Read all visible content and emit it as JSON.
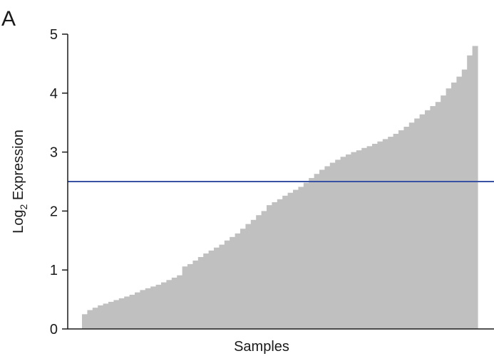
{
  "panel_label": "A",
  "chart_data": {
    "type": "bar",
    "title": "",
    "xlabel": "Samples",
    "ylabel_main": "Log",
    "ylabel_subscript": "2",
    "ylabel_rest": " Expression",
    "ylim": [
      0,
      5
    ],
    "yticks": [
      0,
      1,
      2,
      3,
      4,
      5
    ],
    "grid": false,
    "bar_color": "#c0c0c0",
    "threshold": {
      "value": 2.5,
      "color": "#3a52a2"
    },
    "values": [
      0.25,
      0.32,
      0.36,
      0.4,
      0.43,
      0.46,
      0.49,
      0.52,
      0.55,
      0.58,
      0.62,
      0.66,
      0.69,
      0.72,
      0.75,
      0.79,
      0.83,
      0.87,
      0.91,
      1.06,
      1.1,
      1.16,
      1.22,
      1.28,
      1.33,
      1.38,
      1.43,
      1.5,
      1.56,
      1.62,
      1.7,
      1.78,
      1.85,
      1.93,
      2.0,
      2.1,
      2.15,
      2.2,
      2.26,
      2.31,
      2.36,
      2.41,
      2.48,
      2.56,
      2.63,
      2.7,
      2.76,
      2.82,
      2.87,
      2.92,
      2.96,
      3.0,
      3.03,
      3.07,
      3.1,
      3.14,
      3.18,
      3.22,
      3.26,
      3.31,
      3.37,
      3.43,
      3.5,
      3.57,
      3.64,
      3.71,
      3.78,
      3.85,
      3.96,
      4.08,
      4.18,
      4.28,
      4.4,
      4.64,
      4.8
    ]
  }
}
